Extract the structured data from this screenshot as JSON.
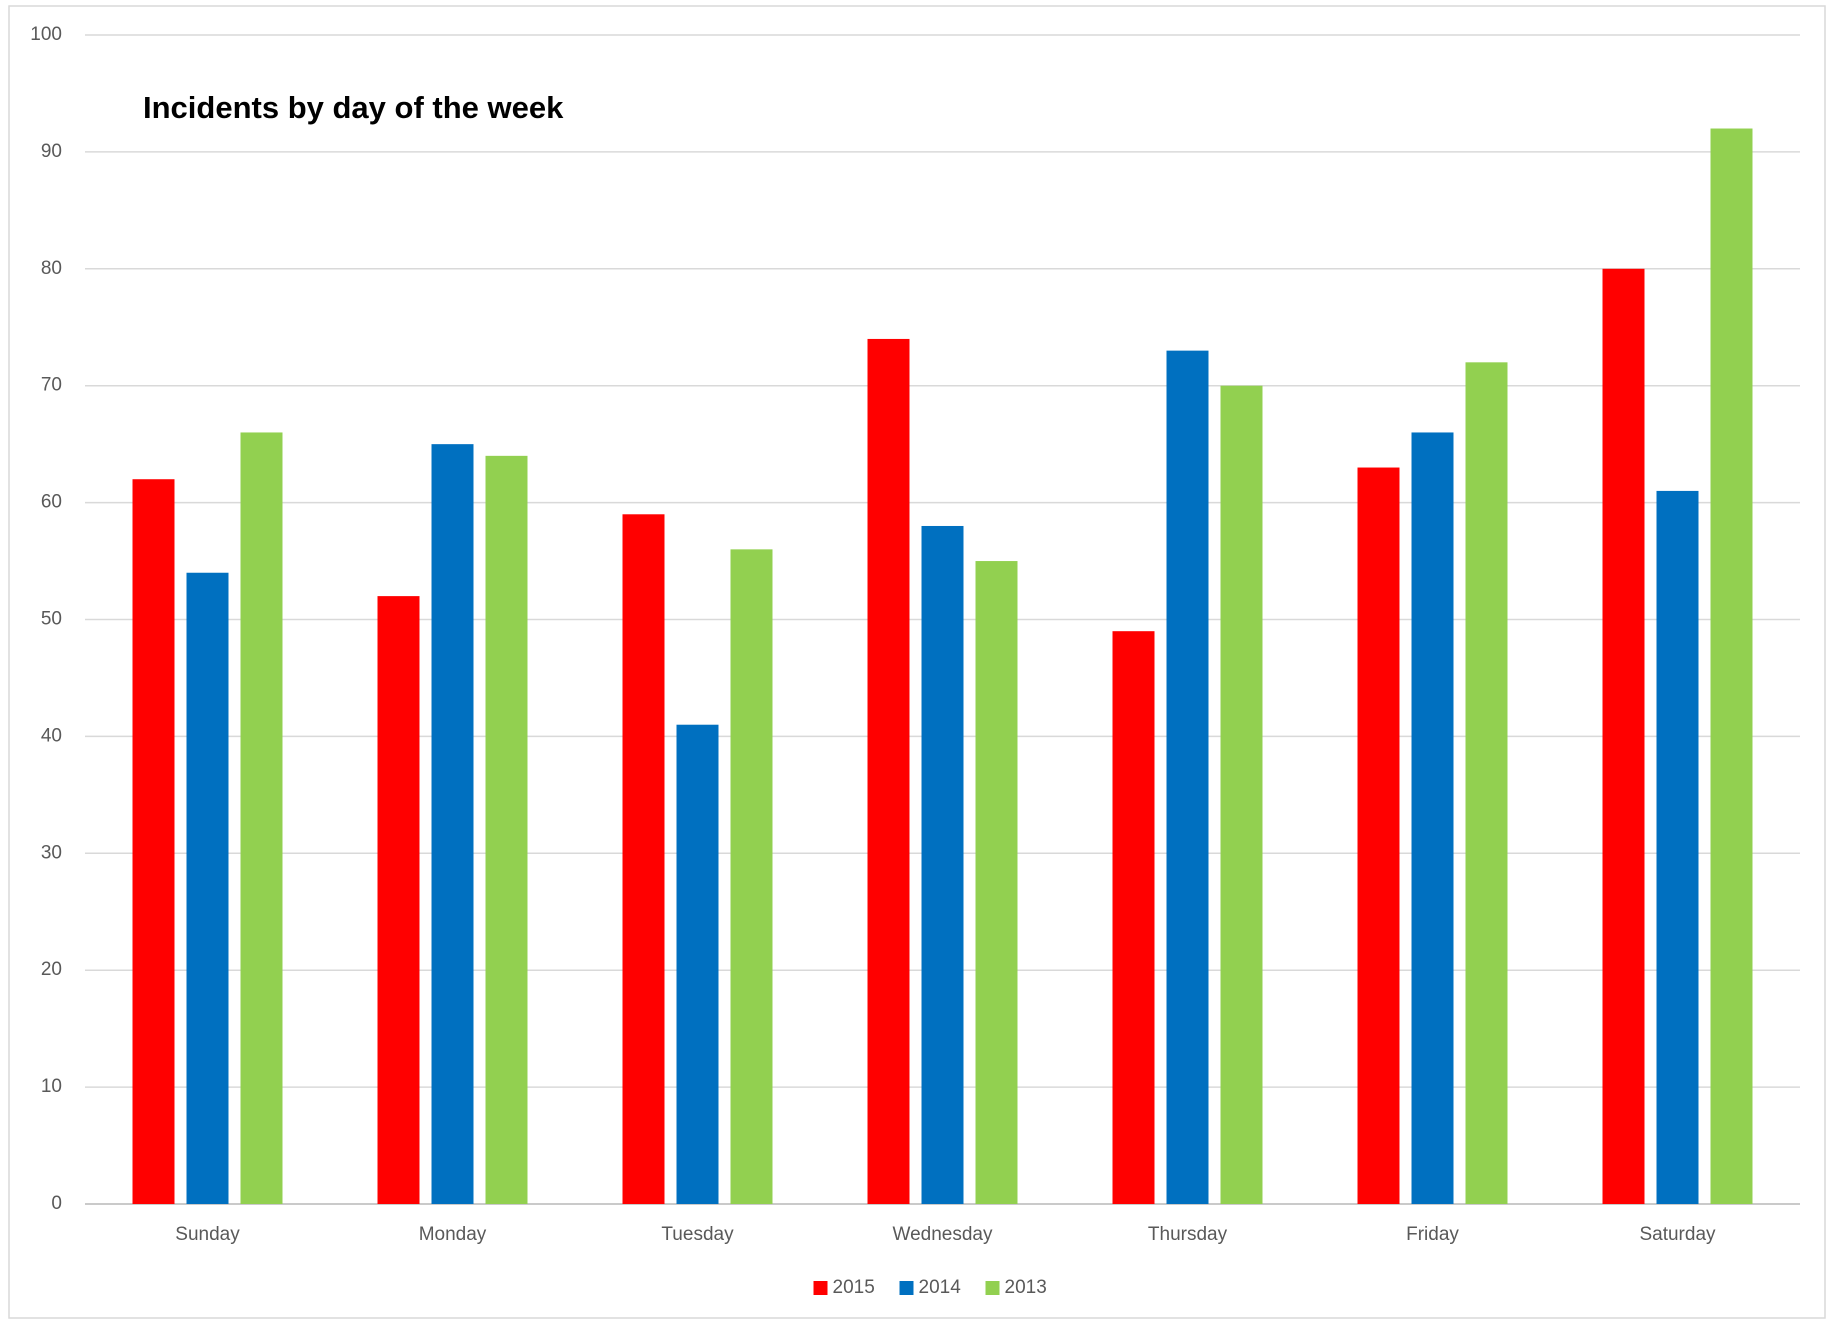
{
  "chart_data": {
    "type": "bar",
    "title": "Incidents by day of the week",
    "categories": [
      "Sunday",
      "Monday",
      "Tuesday",
      "Wednesday",
      "Thursday",
      "Friday",
      "Saturday"
    ],
    "series": [
      {
        "name": "2015",
        "color": "#ff0000",
        "values": [
          62,
          52,
          59,
          74,
          49,
          63,
          80
        ]
      },
      {
        "name": "2014",
        "color": "#0070c0",
        "values": [
          54,
          65,
          41,
          58,
          73,
          66,
          61
        ]
      },
      {
        "name": "2013",
        "color": "#92d050",
        "values": [
          66,
          64,
          56,
          55,
          70,
          72,
          92
        ]
      }
    ],
    "ylim": [
      0,
      100
    ],
    "yticks": [
      0,
      10,
      20,
      30,
      40,
      50,
      60,
      70,
      80,
      90,
      100
    ],
    "grid": true,
    "legend": "bottom"
  }
}
